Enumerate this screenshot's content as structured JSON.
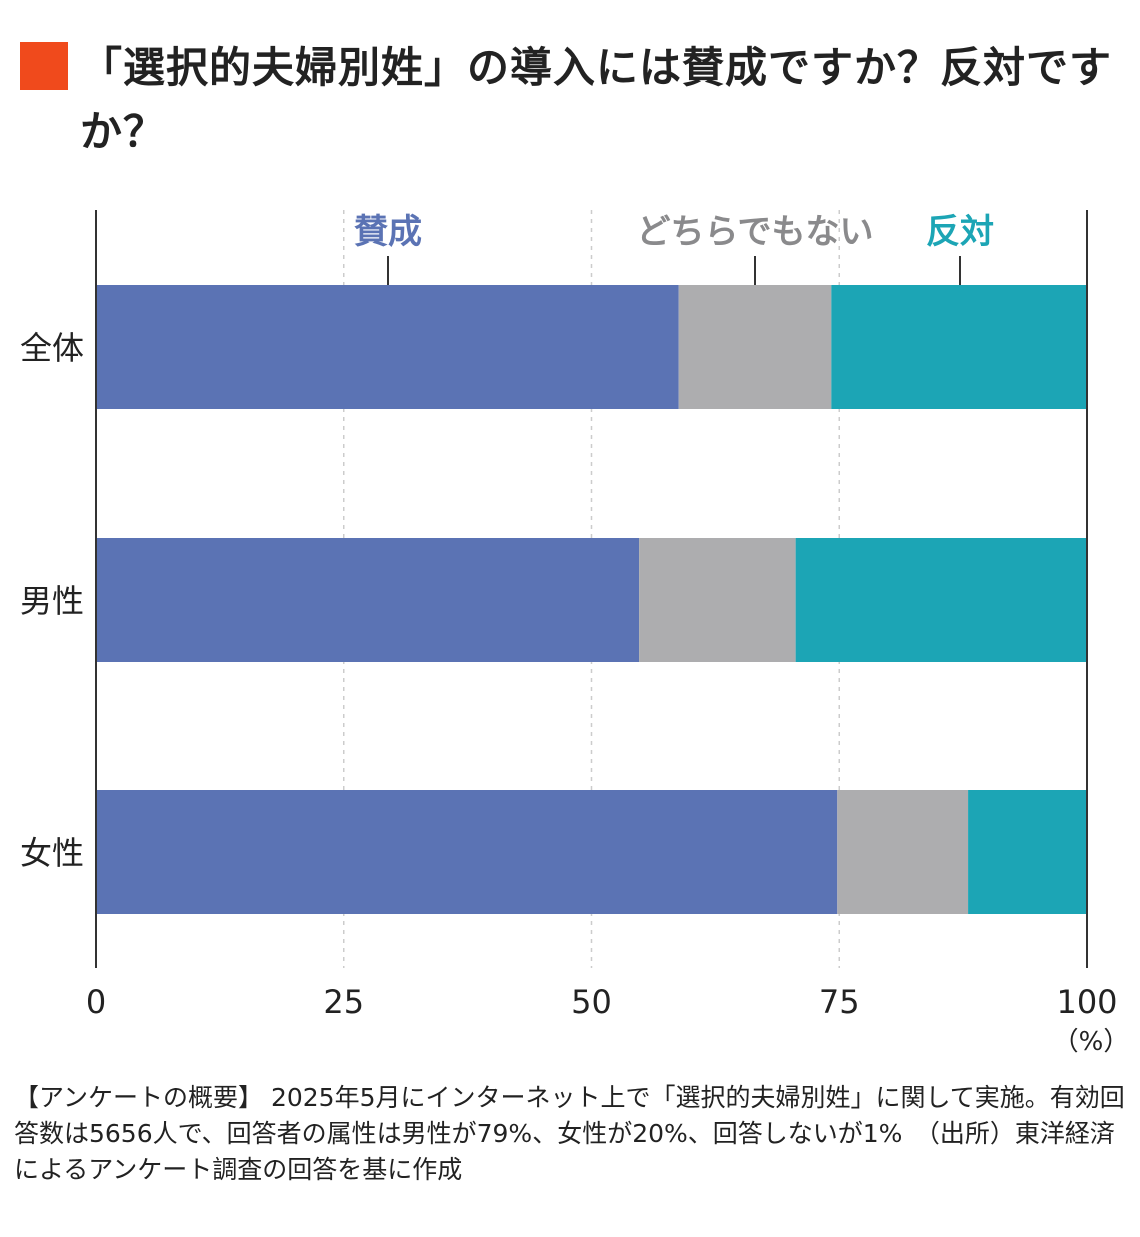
{
  "title": "「選択的夫婦別姓」の導入には賛成ですか？反対ですか？",
  "colors": {
    "accent": "#f04a1c",
    "support": "#5b73b4",
    "neutral": "#adadaf",
    "oppose": "#1ca5b5",
    "axis": "#333333",
    "grid": "#cccccc"
  },
  "chart_data": {
    "type": "bar",
    "orientation": "horizontal",
    "stacked": true,
    "categories": [
      "全体",
      "男性",
      "女性"
    ],
    "series": [
      {
        "name": "賛成",
        "values": [
          58.8,
          54.8,
          74.8
        ]
      },
      {
        "name": "どちらでもない",
        "values": [
          15.4,
          15.8,
          13.2
        ]
      },
      {
        "name": "反対",
        "values": [
          25.8,
          29.4,
          12.0
        ]
      }
    ],
    "xlim": [
      0,
      100
    ],
    "xticks": [
      "0",
      "25",
      "50",
      "75",
      "100"
    ],
    "xunit": "（%）",
    "grid": true,
    "legend_placement": "top"
  },
  "footnote": "【アンケートの概要】 2025年5月にインターネット上で「選択的夫婦別姓」に関して実施。有効回答数は5656人で、回答者の属性は男性が79%、女性が20%、回答しないが1%　（出所）東洋経済によるアンケート調査の回答を基に作成"
}
